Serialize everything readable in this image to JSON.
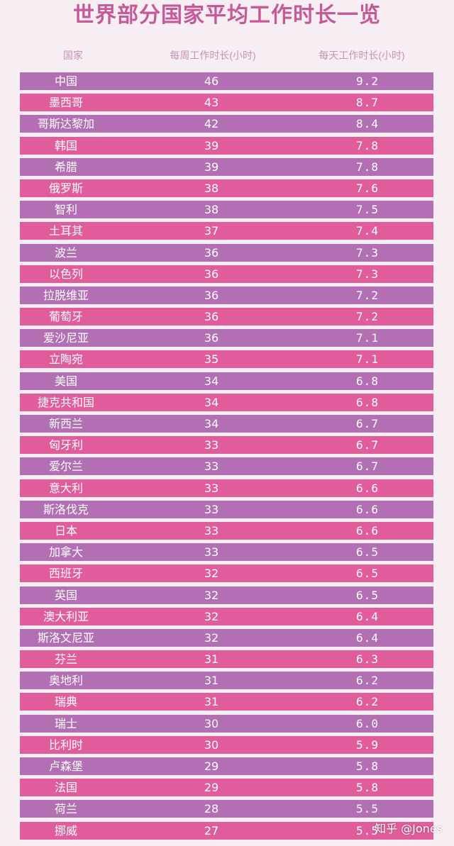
{
  "title": "世界部分国家平均工作时长一览",
  "watermark": "知乎 @Jones",
  "colors": {
    "title": "#c65a98",
    "header": "#c792b4",
    "row_purple": "#b26fb3",
    "row_pink": "#e05c9a"
  },
  "chart_data": {
    "type": "table",
    "title": "世界部分国家平均工作时长一览",
    "columns": [
      "国家",
      "每周工作时长(小时)",
      "每天工作时长(小时)"
    ],
    "rows": [
      [
        "中国",
        "46",
        "9.2"
      ],
      [
        "墨西哥",
        "43",
        "8.7"
      ],
      [
        "哥斯达黎加",
        "42",
        "8.4"
      ],
      [
        "韩国",
        "39",
        "7.8"
      ],
      [
        "希腊",
        "39",
        "7.8"
      ],
      [
        "俄罗斯",
        "38",
        "7.6"
      ],
      [
        "智利",
        "38",
        "7.5"
      ],
      [
        "土耳其",
        "37",
        "7.4"
      ],
      [
        "波兰",
        "36",
        "7.3"
      ],
      [
        "以色列",
        "36",
        "7.3"
      ],
      [
        "拉脱维亚",
        "36",
        "7.2"
      ],
      [
        "葡萄牙",
        "36",
        "7.2"
      ],
      [
        "爱沙尼亚",
        "36",
        "7.1"
      ],
      [
        "立陶宛",
        "35",
        "7.1"
      ],
      [
        "美国",
        "34",
        "6.8"
      ],
      [
        "捷克共和国",
        "34",
        "6.8"
      ],
      [
        "新西兰",
        "34",
        "6.7"
      ],
      [
        "匈牙利",
        "33",
        "6.7"
      ],
      [
        "爱尔兰",
        "33",
        "6.7"
      ],
      [
        "意大利",
        "33",
        "6.6"
      ],
      [
        "斯洛伐克",
        "33",
        "6.6"
      ],
      [
        "日本",
        "33",
        "6.6"
      ],
      [
        "加拿大",
        "33",
        "6.5"
      ],
      [
        "西班牙",
        "32",
        "6.5"
      ],
      [
        "英国",
        "32",
        "6.5"
      ],
      [
        "澳大利亚",
        "32",
        "6.4"
      ],
      [
        "斯洛文尼亚",
        "32",
        "6.4"
      ],
      [
        "芬兰",
        "31",
        "6.3"
      ],
      [
        "奥地利",
        "31",
        "6.2"
      ],
      [
        "瑞典",
        "31",
        "6.2"
      ],
      [
        "瑞士",
        "30",
        "6.0"
      ],
      [
        "比利时",
        "30",
        "5.9"
      ],
      [
        "卢森堡",
        "29",
        "5.8"
      ],
      [
        "法国",
        "29",
        "5.8"
      ],
      [
        "荷兰",
        "28",
        "5.5"
      ],
      [
        "挪威",
        "27",
        "5.5"
      ]
    ]
  }
}
